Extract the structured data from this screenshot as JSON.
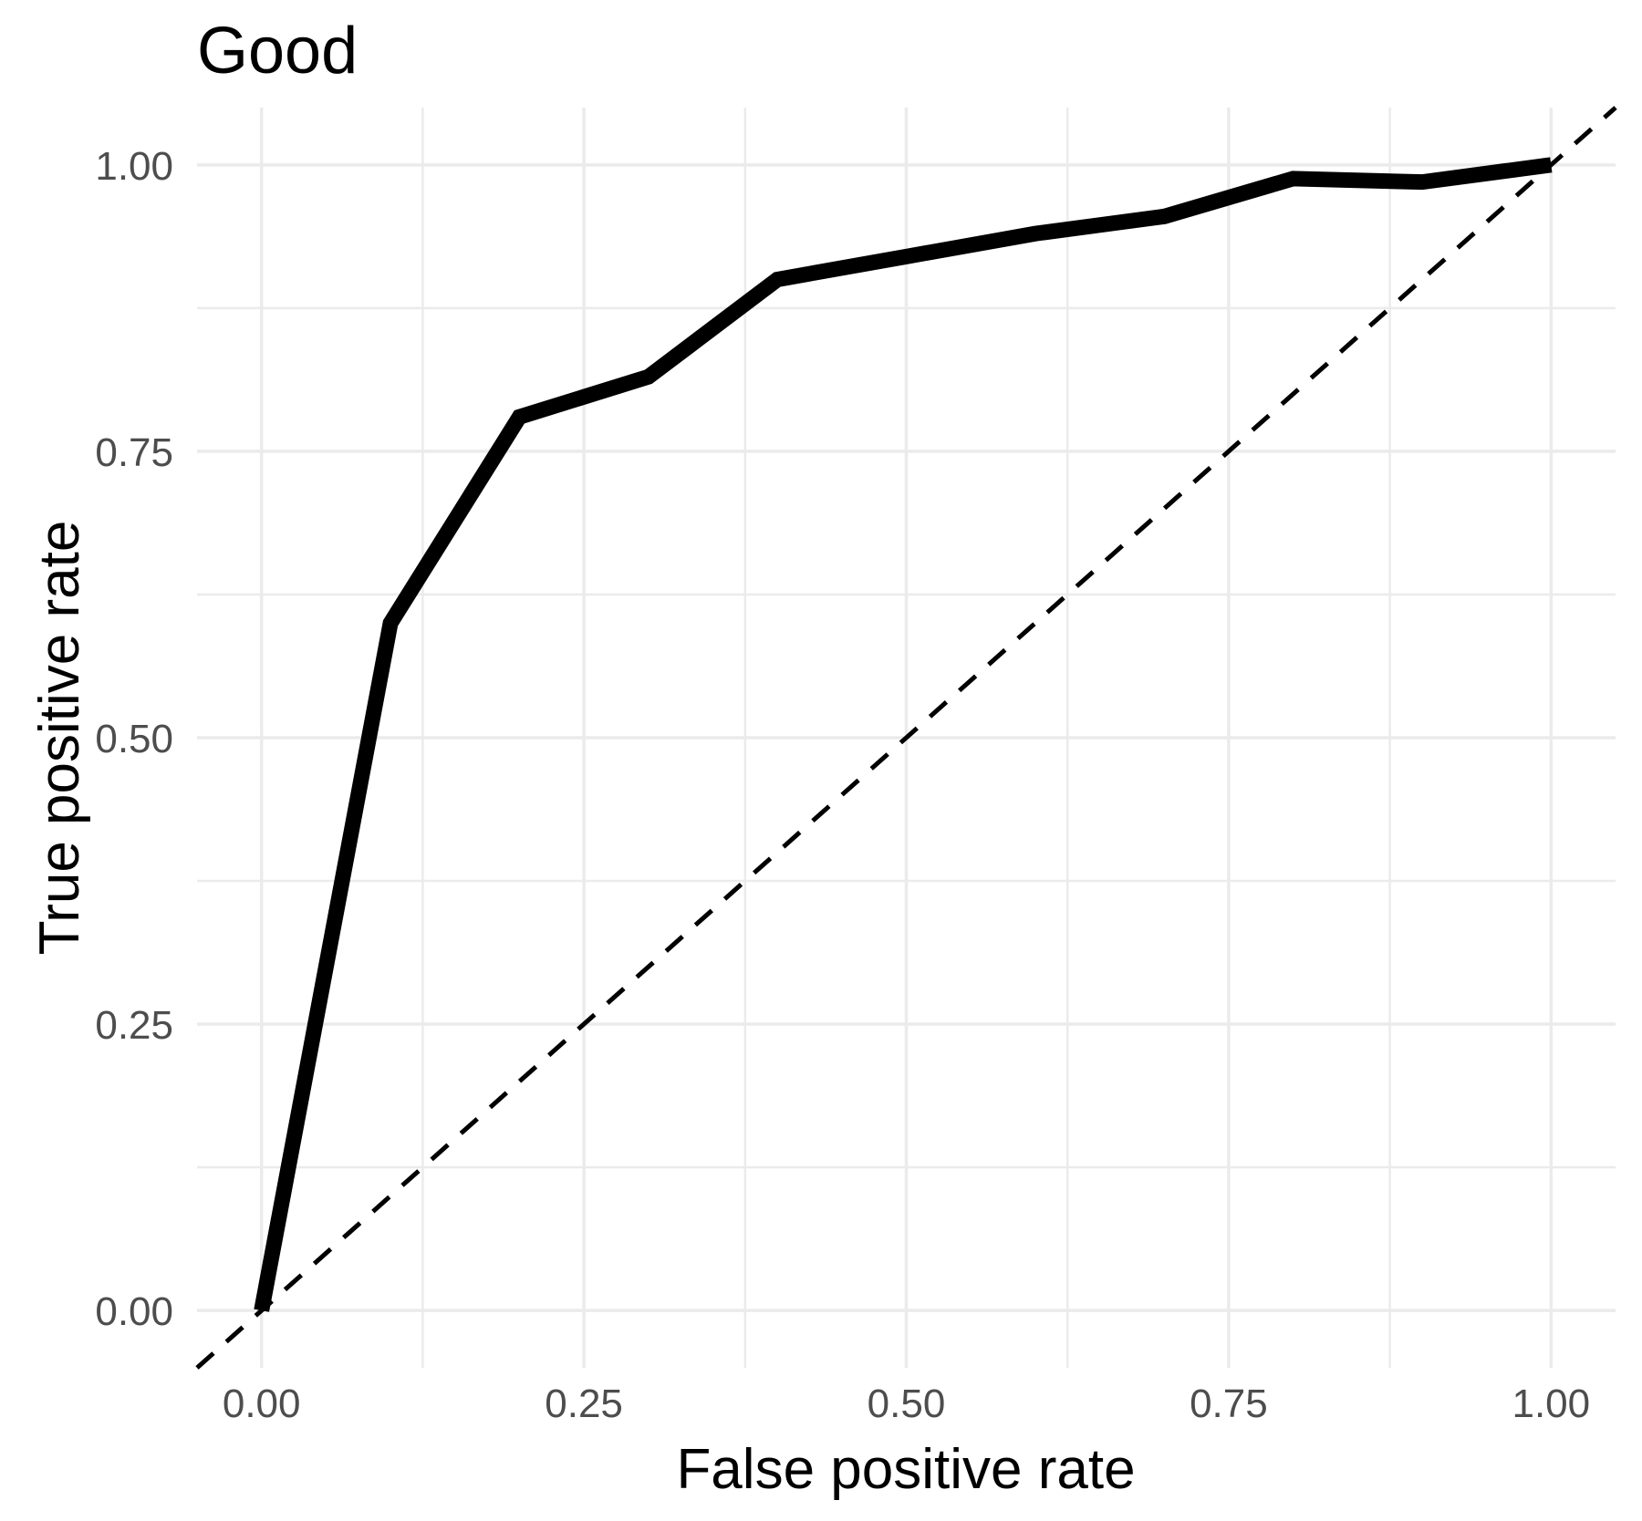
{
  "figure": {
    "title": "Good"
  },
  "chart_data": {
    "type": "line",
    "title": "Good",
    "xlabel": "False positive rate",
    "ylabel": "True positive rate",
    "xlim": [
      0,
      1
    ],
    "ylim": [
      0,
      1
    ],
    "grid": true,
    "legend": "none",
    "x_ticks": {
      "values": [
        0,
        0.25,
        0.5,
        0.75,
        1
      ],
      "labels": [
        "0.00",
        "0.25",
        "0.50",
        "0.75",
        "1.00"
      ]
    },
    "y_ticks": {
      "values": [
        0,
        0.25,
        0.5,
        0.75,
        1
      ],
      "labels": [
        "0.00",
        "0.25",
        "0.50",
        "0.75",
        "1.00"
      ]
    },
    "x_minor_ticks": [
      0.125,
      0.375,
      0.625,
      0.875
    ],
    "y_minor_ticks": [
      0.125,
      0.375,
      0.625,
      0.875
    ],
    "series": [
      {
        "name": "roc-curve",
        "label": "ROC curve",
        "style": "solid",
        "stroke_width": 17,
        "color": "#000000",
        "x": [
          0.0,
          0.1,
          0.2,
          0.3,
          0.4,
          0.5,
          0.6,
          0.7,
          0.8,
          0.9,
          1.0
        ],
        "y": [
          0.0,
          0.6,
          0.78,
          0.815,
          0.9,
          0.92,
          0.94,
          0.955,
          0.988,
          0.985,
          1.0
        ]
      },
      {
        "name": "chance-diagonal",
        "label": "Chance reference (y = x)",
        "style": "dashed",
        "stroke_width": 5,
        "color": "#000000",
        "x": [
          -0.05,
          1.05
        ],
        "y": [
          -0.05,
          1.05
        ]
      }
    ],
    "colors": {
      "background": "#ffffff",
      "grid": "#ebebeb",
      "axis_text": "#4d4d4d",
      "title_text": "#000000"
    }
  }
}
